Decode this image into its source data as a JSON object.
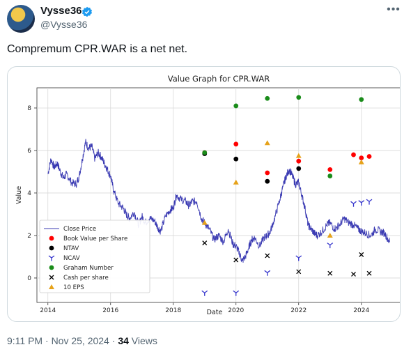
{
  "tweet": {
    "display_name": "Vysse36",
    "handle": "@Vysse36",
    "more_icon": "ellipsis-icon",
    "verified_icon": "verified-badge-icon",
    "text": "Compremum CPR.WAR is a net net.",
    "time": "9:11 PM",
    "separator": "·",
    "date": "Nov 25, 2024",
    "views_count": "34",
    "views_label": "Views"
  },
  "colors": {
    "verified": "#1d9bf0",
    "close_price": "#3b3bb3",
    "book_value": "#ff0000",
    "ntav": "#000000",
    "ncav": "#3333cc",
    "graham": "#1a8c1a",
    "cash": "#000000",
    "eps10": "#e6a21a"
  },
  "chart_data": {
    "type": "scatter",
    "title": "Value Graph for CPR.WAR",
    "xlabel": "Date",
    "ylabel": "Value",
    "xlim": [
      2013.65,
      2025.25
    ],
    "ylim": [
      -1.15,
      8.95
    ],
    "x_ticks": [
      2014,
      2016,
      2018,
      2020,
      2022,
      2024
    ],
    "x_tick_labels": [
      "2014",
      "2016",
      "2018",
      "2020",
      "2022",
      "2024"
    ],
    "y_ticks": [
      0,
      2,
      4,
      6,
      8
    ],
    "y_tick_labels": [
      "0",
      "2",
      "4",
      "6",
      "8"
    ],
    "grid": true,
    "legend_position": "lower-left",
    "close_price": {
      "name": "Close Price",
      "x": [
        2014.0,
        2014.1,
        2014.2,
        2014.3,
        2014.4,
        2014.5,
        2014.6,
        2014.75,
        2014.9,
        2015.0,
        2015.1,
        2015.2,
        2015.3,
        2015.4,
        2015.5,
        2015.6,
        2015.7,
        2015.8,
        2015.9,
        2016.0,
        2016.1,
        2016.25,
        2016.4,
        2016.5,
        2016.6,
        2016.75,
        2016.9,
        2017.0,
        2017.1,
        2017.25,
        2017.4,
        2017.5,
        2017.6,
        2017.75,
        2017.9,
        2018.0,
        2018.1,
        2018.25,
        2018.4,
        2018.5,
        2018.6,
        2018.75,
        2018.9,
        2019.0,
        2019.15,
        2019.3,
        2019.45,
        2019.6,
        2019.75,
        2019.9,
        2020.0,
        2020.1,
        2020.2,
        2020.3,
        2020.4,
        2020.5,
        2020.6,
        2020.75,
        2020.9,
        2021.0,
        2021.1,
        2021.25,
        2021.4,
        2021.5,
        2021.6,
        2021.7,
        2021.8,
        2021.9,
        2022.0,
        2022.1,
        2022.2,
        2022.3,
        2022.4,
        2022.5,
        2022.6,
        2022.75,
        2022.9,
        2023.0,
        2023.15,
        2023.3,
        2023.45,
        2023.6,
        2023.75,
        2023.9,
        2024.0,
        2024.15,
        2024.3,
        2024.45,
        2024.6,
        2024.75,
        2024.9
      ],
      "y": [
        4.9,
        5.6,
        5.2,
        5.4,
        5.0,
        4.7,
        4.9,
        4.5,
        4.4,
        4.8,
        5.6,
        6.4,
        6.1,
        6.2,
        5.6,
        5.9,
        5.7,
        5.4,
        5.1,
        4.8,
        4.1,
        3.5,
        3.3,
        3.0,
        2.8,
        3.1,
        2.5,
        2.9,
        2.6,
        2.8,
        2.7,
        2.4,
        2.2,
        2.9,
        3.2,
        3.3,
        3.9,
        3.7,
        3.6,
        3.4,
        3.6,
        3.6,
        2.8,
        2.6,
        2.3,
        1.8,
        2.0,
        1.7,
        2.3,
        1.6,
        1.5,
        1.2,
        0.8,
        1.0,
        1.4,
        1.8,
        1.9,
        1.5,
        1.9,
        2.0,
        2.2,
        2.9,
        3.7,
        4.3,
        4.8,
        5.1,
        4.8,
        4.4,
        4.5,
        3.9,
        3.3,
        2.5,
        2.3,
        2.1,
        2.0,
        2.2,
        2.5,
        2.6,
        2.3,
        2.5,
        2.8,
        2.6,
        2.5,
        2.3,
        2.2,
        2.1,
        2.0,
        2.3,
        2.2,
        2.1,
        1.7
      ]
    },
    "series": [
      {
        "name": "Book Value per Share",
        "marker": "circle",
        "color": "#ff0000",
        "x": [
          2019.0,
          2020.0,
          2021.0,
          2022.0,
          2023.0,
          2023.75,
          2024.0,
          2024.25
        ],
        "y": [
          5.9,
          6.3,
          4.95,
          5.5,
          5.1,
          5.8,
          5.65,
          5.72
        ]
      },
      {
        "name": "NTAV",
        "marker": "circle",
        "color": "#000000",
        "x": [
          2019.0,
          2020.0,
          2021.0,
          2022.0
        ],
        "y": [
          5.85,
          5.6,
          4.55,
          5.15
        ]
      },
      {
        "name": "NCAV",
        "marker": "tri",
        "color": "#3333cc",
        "x": [
          2019.0,
          2020.0,
          2021.0,
          2022.0,
          2023.0,
          2023.75,
          2024.0,
          2024.25
        ],
        "y": [
          -0.7,
          -0.7,
          0.25,
          0.95,
          1.55,
          3.5,
          3.55,
          3.6
        ]
      },
      {
        "name": "Graham Number",
        "marker": "circle",
        "color": "#1a8c1a",
        "x": [
          2019.0,
          2020.0,
          2021.0,
          2022.0,
          2023.0,
          2024.0
        ],
        "y": [
          5.9,
          8.1,
          8.45,
          8.5,
          4.8,
          8.4
        ]
      },
      {
        "name": "Cash per share",
        "marker": "x",
        "color": "#000000",
        "x": [
          2019.0,
          2020.0,
          2021.0,
          2022.0,
          2023.0,
          2023.75,
          2024.0,
          2024.25
        ],
        "y": [
          1.65,
          0.85,
          1.05,
          0.3,
          0.22,
          0.18,
          1.1,
          0.22
        ]
      },
      {
        "name": "10 EPS",
        "marker": "triangle",
        "color": "#e6a21a",
        "x": [
          2019.0,
          2020.0,
          2021.0,
          2022.0,
          2023.0,
          2024.0
        ],
        "y": [
          2.6,
          4.5,
          6.35,
          5.75,
          2.0,
          5.45
        ]
      }
    ]
  }
}
